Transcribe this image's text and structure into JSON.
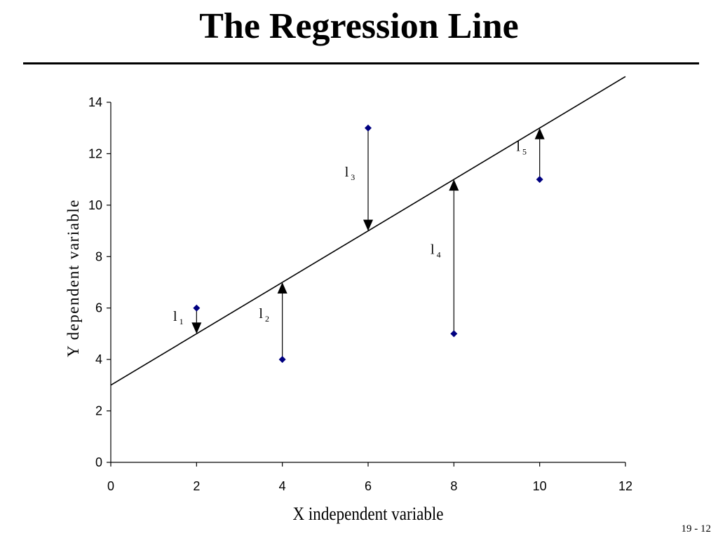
{
  "slide": {
    "title": "The Regression Line",
    "page_number": "19 - 12"
  },
  "chart_data": {
    "type": "scatter",
    "title": "",
    "xlabel": "X independent variable",
    "ylabel": "Y dependent variable",
    "xlim": [
      0,
      12
    ],
    "ylim": [
      0,
      14
    ],
    "x_ticks": [
      0,
      2,
      4,
      6,
      8,
      10,
      12
    ],
    "y_ticks": [
      0,
      2,
      4,
      6,
      8,
      10,
      12,
      14
    ],
    "grid": false,
    "legend": "none",
    "point_color": "#000080",
    "line_color": "#000000",
    "points": [
      {
        "x": 2,
        "y": 6
      },
      {
        "x": 4,
        "y": 4
      },
      {
        "x": 6,
        "y": 13
      },
      {
        "x": 8,
        "y": 5
      },
      {
        "x": 10,
        "y": 11
      }
    ],
    "regression_line": {
      "x_start": 0,
      "y_start": 3,
      "x_end": 12,
      "y_end": 15
    },
    "residuals": [
      {
        "label": "l",
        "sub": "1",
        "x": 2,
        "from_y": 6,
        "to_y": 5
      },
      {
        "label": "l",
        "sub": "2",
        "x": 4,
        "from_y": 4,
        "to_y": 7
      },
      {
        "label": "l",
        "sub": "3",
        "x": 6,
        "from_y": 13,
        "to_y": 9
      },
      {
        "label": "l",
        "sub": "4",
        "x": 8,
        "from_y": 5,
        "to_y": 11
      },
      {
        "label": "l",
        "sub": "5",
        "x": 10,
        "from_y": 11,
        "to_y": 13
      }
    ]
  }
}
